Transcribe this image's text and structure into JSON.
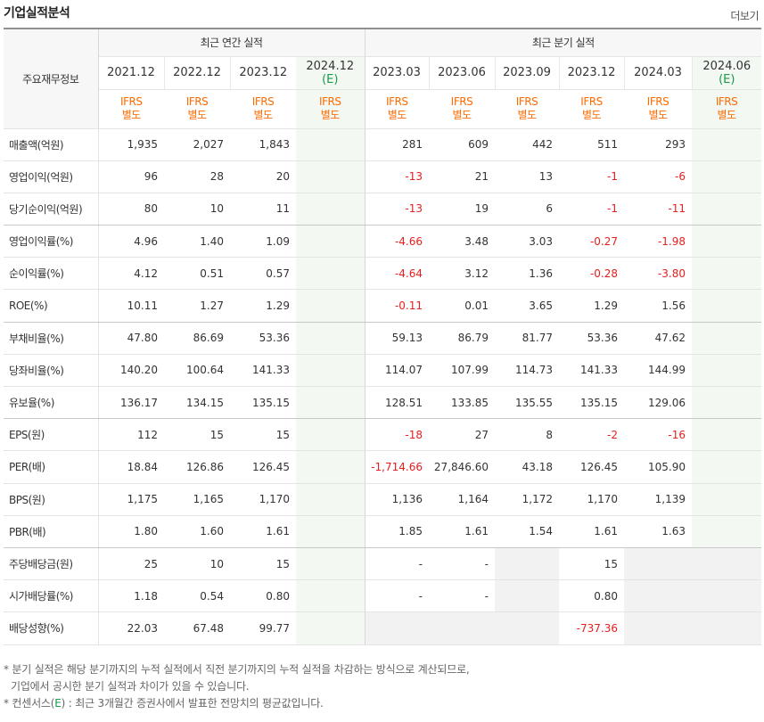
{
  "title": "기업실적분석",
  "more_label": "더보기",
  "corner_label": "주요재무정보",
  "annual_group_label": "최근 연간 실적",
  "quarter_group_label": "최근 분기 실적",
  "annual_periods": [
    {
      "date": "2021.12",
      "sub": "",
      "basis": [
        "IFRS",
        "별도"
      ],
      "estimate": false
    },
    {
      "date": "2022.12",
      "sub": "",
      "basis": [
        "IFRS",
        "별도"
      ],
      "estimate": false
    },
    {
      "date": "2023.12",
      "sub": "",
      "basis": [
        "IFRS",
        "별도"
      ],
      "estimate": false
    },
    {
      "date": "2024.12",
      "sub": "(E)",
      "basis": [
        "IFRS",
        "별도"
      ],
      "estimate": true
    }
  ],
  "quarter_periods": [
    {
      "date": "2023.03",
      "sub": "",
      "basis": [
        "IFRS",
        "별도"
      ],
      "estimate": false
    },
    {
      "date": "2023.06",
      "sub": "",
      "basis": [
        "IFRS",
        "별도"
      ],
      "estimate": false
    },
    {
      "date": "2023.09",
      "sub": "",
      "basis": [
        "IFRS",
        "별도"
      ],
      "estimate": false
    },
    {
      "date": "2023.12",
      "sub": "",
      "basis": [
        "IFRS",
        "별도"
      ],
      "estimate": false
    },
    {
      "date": "2024.03",
      "sub": "",
      "basis": [
        "IFRS",
        "별도"
      ],
      "estimate": false
    },
    {
      "date": "2024.06",
      "sub": "(E)",
      "basis": [
        "IFRS",
        "별도"
      ],
      "estimate": true
    }
  ],
  "rows": [
    {
      "label": "매출액(억원)",
      "values": [
        "1,935",
        "2,027",
        "1,843",
        "",
        "281",
        "609",
        "442",
        "511",
        "293",
        ""
      ],
      "group_end": false
    },
    {
      "label": "영업이익(억원)",
      "values": [
        "96",
        "28",
        "20",
        "",
        "-13",
        "21",
        "13",
        "-1",
        "-6",
        ""
      ],
      "group_end": false
    },
    {
      "label": "당기순이익(억원)",
      "values": [
        "80",
        "10",
        "11",
        "",
        "-13",
        "19",
        "6",
        "-1",
        "-11",
        ""
      ],
      "group_end": true
    },
    {
      "label": "영업이익률(%)",
      "values": [
        "4.96",
        "1.40",
        "1.09",
        "",
        "-4.66",
        "3.48",
        "3.03",
        "-0.27",
        "-1.98",
        ""
      ],
      "group_end": false
    },
    {
      "label": "순이익률(%)",
      "values": [
        "4.12",
        "0.51",
        "0.57",
        "",
        "-4.64",
        "3.12",
        "1.36",
        "-0.28",
        "-3.80",
        ""
      ],
      "group_end": false
    },
    {
      "label": "ROE(%)",
      "values": [
        "10.11",
        "1.27",
        "1.29",
        "",
        "-0.11",
        "0.01",
        "3.65",
        "1.29",
        "1.56",
        ""
      ],
      "group_end": true
    },
    {
      "label": "부채비율(%)",
      "values": [
        "47.80",
        "86.69",
        "53.36",
        "",
        "59.13",
        "86.79",
        "81.77",
        "53.36",
        "47.62",
        ""
      ],
      "group_end": false
    },
    {
      "label": "당좌비율(%)",
      "values": [
        "140.20",
        "100.64",
        "141.33",
        "",
        "114.07",
        "107.99",
        "114.73",
        "141.33",
        "144.99",
        ""
      ],
      "group_end": false
    },
    {
      "label": "유보율(%)",
      "values": [
        "136.17",
        "134.15",
        "135.15",
        "",
        "128.51",
        "133.85",
        "135.55",
        "135.15",
        "129.06",
        ""
      ],
      "group_end": true
    },
    {
      "label": "EPS(원)",
      "values": [
        "112",
        "15",
        "15",
        "",
        "-18",
        "27",
        "8",
        "-2",
        "-16",
        ""
      ],
      "group_end": false
    },
    {
      "label": "PER(배)",
      "values": [
        "18.84",
        "126.86",
        "126.45",
        "",
        "-1,714.66",
        "27,846.60",
        "43.18",
        "126.45",
        "105.90",
        ""
      ],
      "group_end": false
    },
    {
      "label": "BPS(원)",
      "values": [
        "1,175",
        "1,165",
        "1,170",
        "",
        "1,136",
        "1,164",
        "1,172",
        "1,170",
        "1,139",
        ""
      ],
      "group_end": false
    },
    {
      "label": "PBR(배)",
      "values": [
        "1.80",
        "1.60",
        "1.61",
        "",
        "1.85",
        "1.61",
        "1.54",
        "1.61",
        "1.63",
        ""
      ],
      "group_end": true
    },
    {
      "label": "주당배당금(원)",
      "values": [
        "25",
        "10",
        "15",
        "",
        "-",
        "-",
        "",
        "15",
        "",
        ""
      ],
      "greys": [
        6,
        8,
        9
      ],
      "group_end": false
    },
    {
      "label": "시가배당률(%)",
      "values": [
        "1.18",
        "0.54",
        "0.80",
        "",
        "-",
        "-",
        "",
        "0.80",
        "",
        ""
      ],
      "greys": [
        6,
        8,
        9
      ],
      "group_end": false
    },
    {
      "label": "배당성향(%)",
      "values": [
        "22.03",
        "67.48",
        "99.77",
        "",
        "",
        "",
        "",
        "-737.36",
        "",
        ""
      ],
      "greys": [
        4,
        5,
        6,
        8,
        9
      ],
      "group_end": false
    }
  ],
  "notes": {
    "line1": "* 분기 실적은 해당 분기까지의 누적 실적에서 직전 분기까지의 누적 실적을 차감하는 방식으로 계산되므로,",
    "line2": "기업에서 공시한 분기 실적과 차이가 있을 수 있습니다.",
    "line3_prefix": "* 컨센서스(",
    "line3_mark": "E",
    "line3_suffix": ") : 최근 3개월간 증권사에서 발표한 전망치의 평균값입니다."
  },
  "colors": {
    "negative": "#e61e1e",
    "ifrs": "#ff6a00",
    "estimate": "#1a9a4a",
    "estimate_bg": "#f3f8f3"
  }
}
